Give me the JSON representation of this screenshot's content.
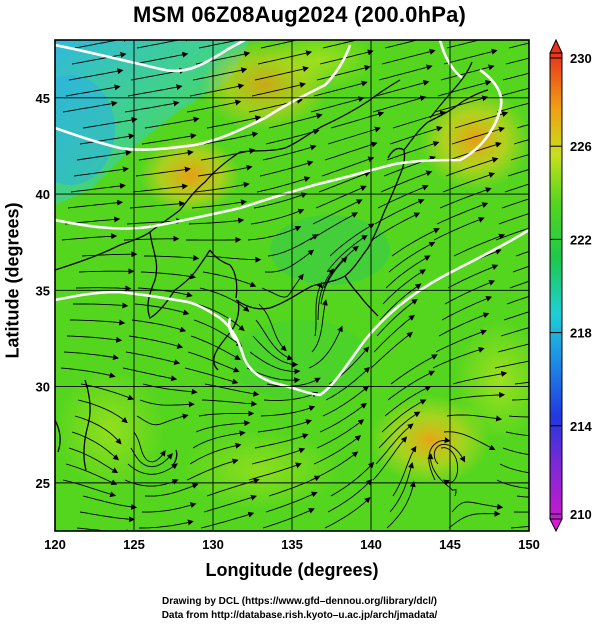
{
  "title": "MSM 06Z08Aug2024 (200.0hPa)",
  "axes": {
    "xlabel": "Longitude (degrees)",
    "ylabel": "Latitude  (degrees)",
    "x_ticks": [
      "120",
      "125",
      "130",
      "135",
      "140",
      "145",
      "150"
    ],
    "y_ticks": [
      "25",
      "30",
      "35",
      "40",
      "45"
    ]
  },
  "colorbar": {
    "ticks": [
      "230",
      "226",
      "222",
      "218",
      "214",
      "210"
    ]
  },
  "credits": [
    "Drawing by DCL (https://www.gfd–dennou.org/library/dcl/)",
    "Data from http://database.rish.kyoto–u.ac.jp/arch/jmadata/"
  ],
  "colors": {
    "field_base": "#4fd61e",
    "warm": "#f2a515",
    "cool": "#38c7d6",
    "contour": "#ffffff",
    "coast": "#000000"
  },
  "map": {
    "lon_range": [
      120,
      150
    ],
    "lat_range": [
      22.5,
      48
    ]
  }
}
